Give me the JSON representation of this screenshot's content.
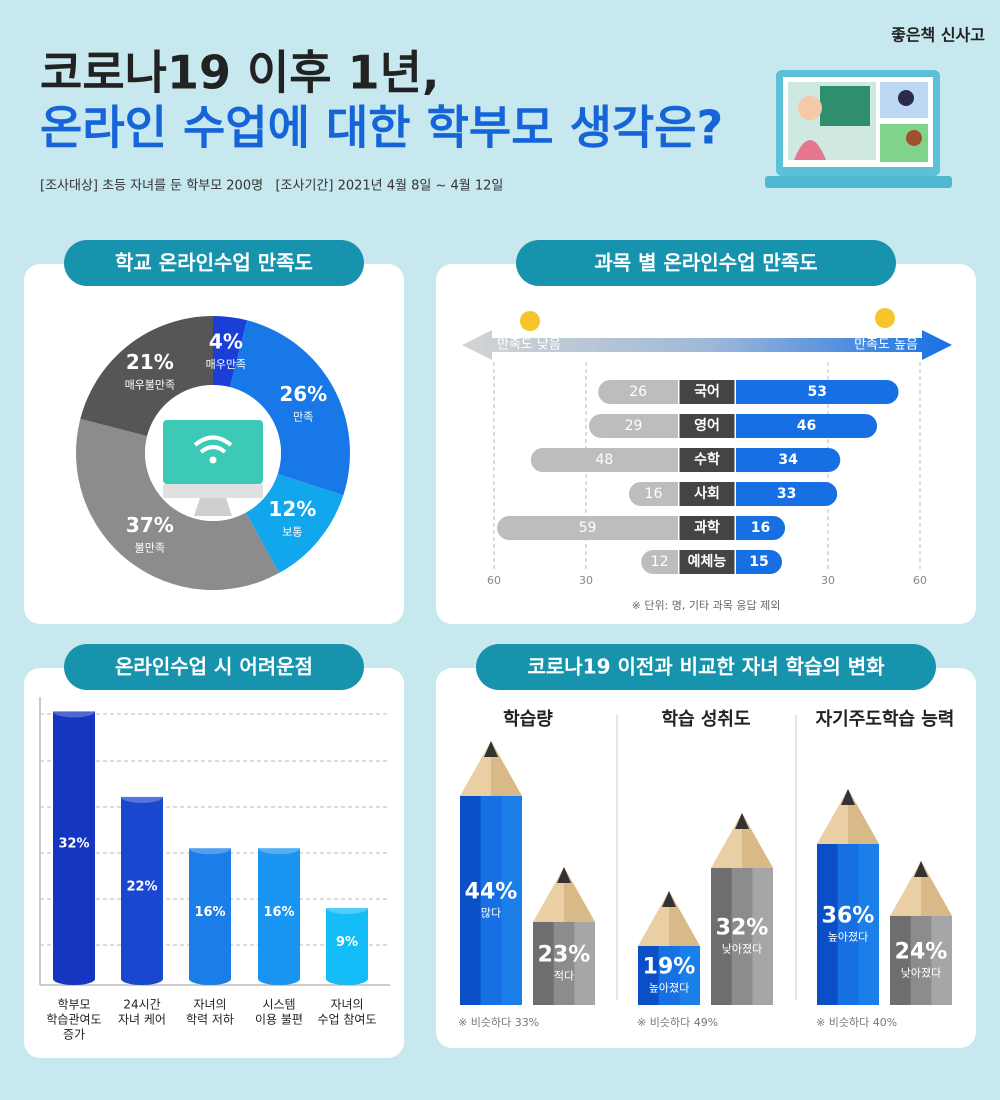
{
  "header": {
    "title_lines": [
      "코로나19 이후 1년,",
      "온라인 수업에 대한 학부모 생각은?"
    ],
    "subtitle": "[조사대상] 초등 자녀를 둔 학부모 200명   [조사기간] 2021년 4월 8일 ~ 4월 12일",
    "logo": "좋은책 신사고"
  },
  "chart_data": [
    {
      "type": "donut",
      "title": "학교 온라인수업 만족도",
      "categories": [
        "매우만족",
        "만족",
        "보통",
        "불만족",
        "매우불만족"
      ],
      "values": [
        4,
        26,
        12,
        37,
        21
      ],
      "value_labels": [
        "4%",
        "26%",
        "12%",
        "37%",
        "21%"
      ],
      "colors": [
        "#1a3fd6",
        "#1878e8",
        "#12a6ec",
        "#8c8c8c",
        "#565656"
      ]
    },
    {
      "type": "diverging_bar",
      "title": "과목 별 온라인수업 만족도",
      "categories": [
        "국어",
        "영어",
        "수학",
        "사회",
        "과학",
        "예체능"
      ],
      "series": [
        {
          "name": "만족도 낮음",
          "color": "#bdbdbd",
          "values": [
            26,
            29,
            48,
            16,
            59,
            12
          ]
        },
        {
          "name": "만족도 높음",
          "color": "#1670e4",
          "values": [
            53,
            46,
            34,
            33,
            16,
            15
          ]
        }
      ],
      "xlim": [
        -60,
        60
      ],
      "xticks": [
        {
          "value": -60,
          "label": "60"
        },
        {
          "value": -30,
          "label": "30"
        },
        30,
        60
      ],
      "note": "※ 단위: 명, 기타 과목 응답 제외"
    },
    {
      "type": "cylinder_bar",
      "title": "온라인수업 시 어려운점",
      "categories": [
        [
          "학부모",
          "학습관여도",
          "증가"
        ],
        [
          "24시간",
          "자녀 케어"
        ],
        [
          "자녀의",
          "학력 저하"
        ],
        [
          "시스템",
          "이용 불편"
        ],
        [
          "자녀의",
          "수업 참여도"
        ]
      ],
      "values": [
        32,
        22,
        16,
        16,
        9
      ],
      "value_labels": [
        "32%",
        "22%",
        "16%",
        "16%",
        "9%"
      ],
      "colors": [
        "#1536c0",
        "#1a47d0",
        "#1b7ee8",
        "#1994f0",
        "#15bdf8"
      ]
    },
    {
      "type": "pencil",
      "title": "코로나19 이전과 비교한 자녀 학습의 변화",
      "groups": [
        {
          "name": "학습량",
          "categories": [
            "많다",
            "적다"
          ],
          "values": [
            44,
            23
          ],
          "value_labels": [
            "44%",
            "23%"
          ],
          "colors": [
            "#1670e4",
            "#8c8c8c"
          ],
          "note": "※ 비슷하다 33%"
        },
        {
          "name": "학습 성취도",
          "categories": [
            "높아졌다",
            "낮아졌다"
          ],
          "values": [
            19,
            32
          ],
          "value_labels": [
            "19%",
            "32%"
          ],
          "colors": [
            "#1670e4",
            "#8c8c8c"
          ],
          "note": "※ 비슷하다 49%"
        },
        {
          "name": "자기주도학습 능력",
          "categories": [
            "높아졌다",
            "낮아졌다"
          ],
          "values": [
            36,
            24
          ],
          "value_labels": [
            "36%",
            "24%"
          ],
          "colors": [
            "#1670e4",
            "#8c8c8c"
          ],
          "note": "※ 비슷하다 40%"
        }
      ]
    }
  ]
}
